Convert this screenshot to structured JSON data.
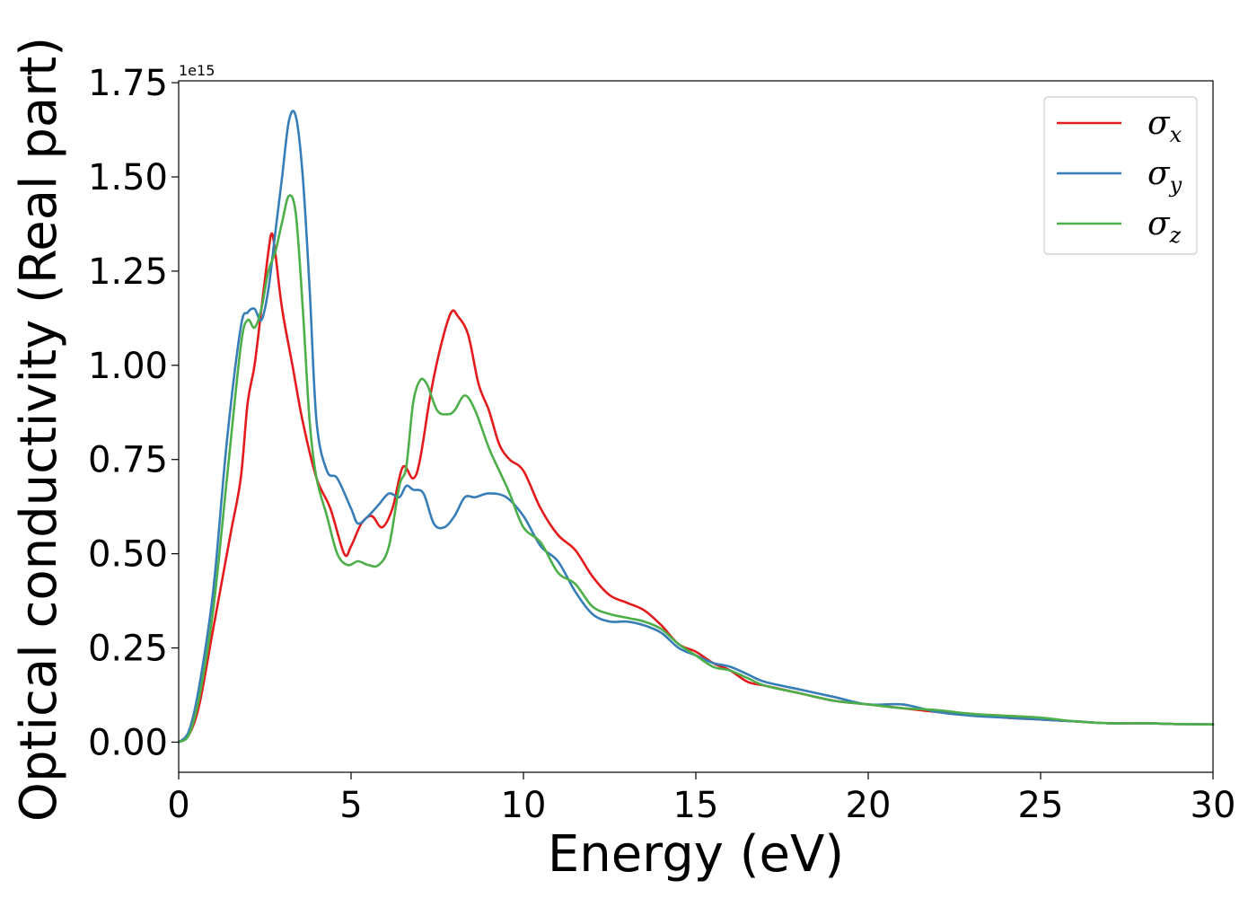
{
  "chart_data": {
    "type": "line",
    "xlabel": "Energy (eV)",
    "ylabel": "Optical conductivity (Real part)",
    "y_offset_text": "1e15",
    "xlim": [
      0,
      30
    ],
    "ylim": [
      -0.08,
      1.755
    ],
    "x_ticks": [
      0,
      5,
      10,
      15,
      20,
      25,
      30
    ],
    "x_tick_labels": [
      "0",
      "5",
      "10",
      "15",
      "20",
      "25",
      "30"
    ],
    "y_ticks": [
      0.0,
      0.25,
      0.5,
      0.75,
      1.0,
      1.25,
      1.5,
      1.75
    ],
    "y_tick_labels": [
      "0.00",
      "0.25",
      "0.50",
      "0.75",
      "1.00",
      "1.25",
      "1.50",
      "1.75"
    ],
    "grid": false,
    "legend_position": "top-right",
    "series": [
      {
        "name": "σx",
        "symbol": "σ",
        "subscript": "x",
        "color": "#e41a1c",
        "x": [
          0,
          0.3,
          0.6,
          1.0,
          1.5,
          1.8,
          2.0,
          2.2,
          2.4,
          2.6,
          2.7,
          2.8,
          3.0,
          3.3,
          3.6,
          4.0,
          4.4,
          4.8,
          5.0,
          5.3,
          5.6,
          5.9,
          6.2,
          6.5,
          6.8,
          7.0,
          7.3,
          7.6,
          7.9,
          8.1,
          8.4,
          8.7,
          9.0,
          9.3,
          9.6,
          10.0,
          10.5,
          11.0,
          11.5,
          12.0,
          12.5,
          13.0,
          13.5,
          14.0,
          14.5,
          15.0,
          15.5,
          16.0,
          16.5,
          17.0,
          18.0,
          19.0,
          20.0,
          21.0,
          22.0,
          23.0,
          24.0,
          25.0,
          26.0,
          27.0,
          28.0,
          29.0,
          30.0
        ],
        "y": [
          0.0,
          0.02,
          0.1,
          0.3,
          0.55,
          0.7,
          0.9,
          1.0,
          1.15,
          1.3,
          1.35,
          1.3,
          1.15,
          1.0,
          0.85,
          0.7,
          0.62,
          0.5,
          0.52,
          0.58,
          0.6,
          0.57,
          0.62,
          0.73,
          0.7,
          0.75,
          0.92,
          1.05,
          1.14,
          1.13,
          1.08,
          0.95,
          0.88,
          0.79,
          0.75,
          0.72,
          0.62,
          0.55,
          0.51,
          0.44,
          0.39,
          0.37,
          0.35,
          0.31,
          0.26,
          0.24,
          0.21,
          0.19,
          0.16,
          0.15,
          0.13,
          0.11,
          0.1,
          0.09,
          0.08,
          0.075,
          0.065,
          0.06,
          0.055,
          0.05,
          0.05,
          0.048,
          0.047
        ]
      },
      {
        "name": "σy",
        "symbol": "σ",
        "subscript": "y",
        "color": "#377eb8",
        "x": [
          0,
          0.3,
          0.6,
          1.0,
          1.4,
          1.8,
          2.0,
          2.2,
          2.4,
          2.6,
          2.8,
          3.0,
          3.2,
          3.4,
          3.6,
          3.8,
          4.0,
          4.3,
          4.6,
          5.0,
          5.2,
          5.5,
          5.8,
          6.1,
          6.4,
          6.6,
          6.8,
          7.1,
          7.4,
          7.7,
          8.0,
          8.3,
          8.6,
          9.0,
          9.5,
          10.0,
          10.5,
          11.0,
          11.5,
          12.0,
          12.5,
          13.0,
          13.5,
          14.0,
          14.5,
          15.0,
          15.5,
          16.0,
          16.5,
          17.0,
          18.0,
          19.0,
          20.0,
          21.0,
          22.0,
          23.0,
          24.0,
          25.0,
          26.0,
          27.0,
          28.0,
          29.0,
          30.0
        ],
        "y": [
          0.0,
          0.03,
          0.15,
          0.4,
          0.8,
          1.1,
          1.14,
          1.15,
          1.12,
          1.2,
          1.35,
          1.5,
          1.65,
          1.66,
          1.5,
          1.2,
          0.85,
          0.72,
          0.7,
          0.62,
          0.58,
          0.6,
          0.63,
          0.66,
          0.65,
          0.68,
          0.67,
          0.66,
          0.58,
          0.57,
          0.6,
          0.65,
          0.65,
          0.66,
          0.65,
          0.6,
          0.52,
          0.48,
          0.4,
          0.34,
          0.32,
          0.32,
          0.31,
          0.29,
          0.25,
          0.23,
          0.21,
          0.2,
          0.18,
          0.16,
          0.14,
          0.12,
          0.1,
          0.1,
          0.08,
          0.07,
          0.065,
          0.06,
          0.055,
          0.05,
          0.05,
          0.048,
          0.047
        ]
      },
      {
        "name": "σz",
        "symbol": "σ",
        "subscript": "z",
        "color": "#4daf4a",
        "x": [
          0,
          0.3,
          0.6,
          1.0,
          1.4,
          1.8,
          2.0,
          2.2,
          2.4,
          2.6,
          2.8,
          3.0,
          3.2,
          3.4,
          3.6,
          3.8,
          4.0,
          4.3,
          4.6,
          4.9,
          5.2,
          5.5,
          5.8,
          6.1,
          6.4,
          6.6,
          6.8,
          7.0,
          7.2,
          7.5,
          7.8,
          8.0,
          8.3,
          8.6,
          9.0,
          9.3,
          9.6,
          10.0,
          10.5,
          11.0,
          11.5,
          12.0,
          12.5,
          13.0,
          13.5,
          14.0,
          14.5,
          15.0,
          15.5,
          16.0,
          16.5,
          17.0,
          18.0,
          19.0,
          20.0,
          21.0,
          22.0,
          23.0,
          24.0,
          25.0,
          26.0,
          27.0,
          28.0,
          29.0,
          30.0
        ],
        "y": [
          0.0,
          0.02,
          0.12,
          0.35,
          0.7,
          1.05,
          1.12,
          1.1,
          1.15,
          1.25,
          1.3,
          1.38,
          1.45,
          1.4,
          1.15,
          0.85,
          0.7,
          0.6,
          0.5,
          0.47,
          0.48,
          0.47,
          0.47,
          0.52,
          0.68,
          0.73,
          0.9,
          0.96,
          0.95,
          0.88,
          0.87,
          0.88,
          0.92,
          0.88,
          0.78,
          0.72,
          0.66,
          0.57,
          0.53,
          0.45,
          0.42,
          0.36,
          0.34,
          0.33,
          0.32,
          0.3,
          0.26,
          0.23,
          0.2,
          0.19,
          0.17,
          0.15,
          0.13,
          0.11,
          0.1,
          0.09,
          0.085,
          0.075,
          0.07,
          0.065,
          0.055,
          0.05,
          0.05,
          0.048,
          0.047
        ]
      }
    ]
  }
}
